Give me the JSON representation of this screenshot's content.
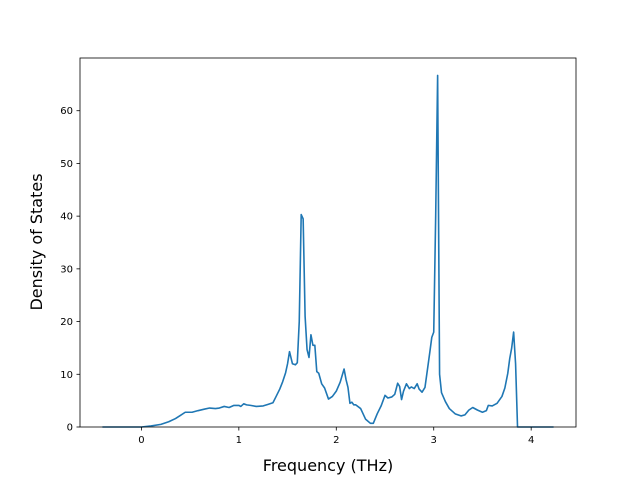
{
  "chart_data": {
    "type": "line",
    "title": "",
    "xlabel": "Frequency (THz)",
    "ylabel": "Density of States",
    "xlim": [
      -0.63,
      4.46
    ],
    "ylim": [
      0,
      70
    ],
    "x_ticks": [
      0,
      1,
      2,
      3,
      4
    ],
    "y_ticks": [
      0,
      10,
      20,
      30,
      40,
      50,
      60
    ],
    "grid": false,
    "legend": "none",
    "line_color": "#1f77b4",
    "series": [
      {
        "x": [
          -0.4,
          0.0,
          0.1,
          0.2,
          0.28,
          0.35,
          0.4,
          0.45,
          0.52,
          0.58,
          0.65,
          0.7,
          0.76,
          0.8,
          0.85,
          0.9,
          0.95,
          1.0,
          1.02,
          1.05,
          1.08,
          1.12,
          1.18,
          1.25,
          1.3,
          1.35,
          1.38,
          1.42,
          1.45,
          1.48,
          1.5,
          1.52,
          1.55,
          1.58,
          1.6,
          1.62,
          1.64,
          1.66,
          1.68,
          1.7,
          1.72,
          1.74,
          1.76,
          1.78,
          1.8,
          1.82,
          1.85,
          1.88,
          1.92,
          1.96,
          2.0,
          2.04,
          2.08,
          2.1,
          2.12,
          2.14,
          2.16,
          2.18,
          2.2,
          2.25,
          2.3,
          2.35,
          2.38,
          2.42,
          2.46,
          2.5,
          2.53,
          2.57,
          2.6,
          2.63,
          2.65,
          2.67,
          2.69,
          2.72,
          2.75,
          2.77,
          2.8,
          2.83,
          2.85,
          2.88,
          2.91,
          2.94,
          2.96,
          2.98,
          3.0,
          3.02,
          3.04,
          3.06,
          3.08,
          3.12,
          3.16,
          3.22,
          3.28,
          3.32,
          3.36,
          3.4,
          3.45,
          3.5,
          3.54,
          3.56,
          3.6,
          3.65,
          3.7,
          3.73,
          3.76,
          3.78,
          3.8,
          3.82,
          3.84,
          3.86,
          3.9,
          4.0,
          4.23
        ],
        "y": [
          0,
          0,
          0.2,
          0.5,
          1.0,
          1.6,
          2.2,
          2.8,
          2.8,
          3.1,
          3.4,
          3.6,
          3.5,
          3.6,
          3.9,
          3.7,
          4.1,
          4.1,
          3.9,
          4.4,
          4.2,
          4.1,
          3.9,
          4.0,
          4.3,
          4.6,
          5.7,
          7.2,
          8.6,
          10.3,
          12.0,
          14.3,
          12.0,
          11.8,
          12.2,
          20.0,
          40.3,
          39.5,
          21.0,
          14.7,
          13.2,
          17.5,
          15.5,
          15.5,
          10.5,
          10.2,
          8.2,
          7.4,
          5.3,
          5.8,
          6.8,
          8.5,
          11.0,
          9.0,
          7.5,
          4.5,
          4.7,
          4.2,
          4.2,
          3.5,
          1.5,
          0.7,
          0.7,
          2.5,
          4.0,
          6.0,
          5.5,
          5.7,
          6.2,
          8.3,
          7.7,
          5.2,
          6.8,
          8.2,
          7.3,
          7.6,
          7.3,
          8.2,
          7.2,
          6.6,
          7.5,
          11.5,
          14.2,
          17.0,
          18.0,
          40.0,
          66.7,
          10.0,
          6.5,
          4.8,
          3.5,
          2.5,
          2.1,
          2.3,
          3.2,
          3.7,
          3.2,
          2.8,
          3.1,
          4.1,
          4.0,
          4.5,
          5.8,
          7.4,
          10.2,
          13.0,
          15.0,
          18.0,
          12.0,
          0,
          0,
          0,
          0
        ]
      }
    ]
  }
}
